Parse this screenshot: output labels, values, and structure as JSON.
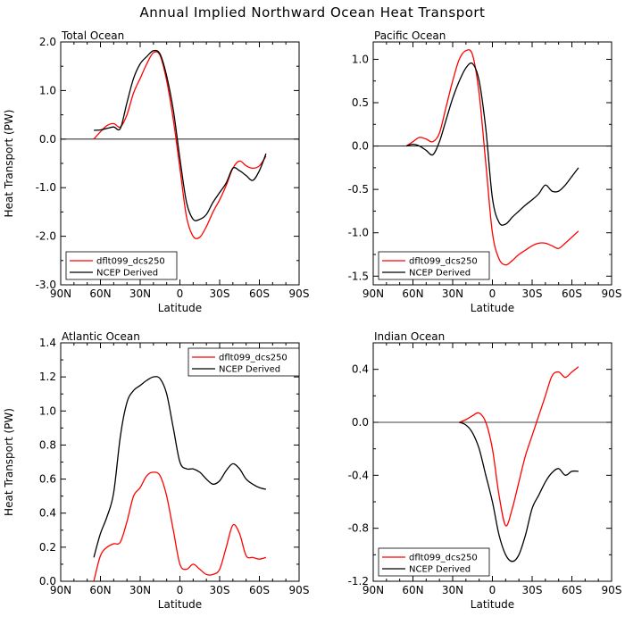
{
  "figure_title": "Annual Implied Northward Ocean Heat Transport",
  "colors": {
    "model": "#ff0000",
    "obs": "#000000",
    "zero_line": "#000000"
  },
  "chart_data": [
    {
      "type": "line",
      "title": "Total Ocean",
      "xlabel": "Latitude",
      "ylabel": "Heat Transport (PW)",
      "xlim": [
        90,
        -90
      ],
      "ylim": [
        -3.0,
        2.0
      ],
      "xticks": [
        90,
        60,
        30,
        0,
        -30,
        -60,
        -90
      ],
      "xtick_labels": [
        "90N",
        "60N",
        "30N",
        "0",
        "30S",
        "60S",
        "90S"
      ],
      "yticks": [
        -3.0,
        -2.0,
        -1.0,
        0.0,
        1.0,
        2.0
      ],
      "ytick_labels": [
        "-3.0",
        "-2.0",
        "-1.0",
        "0.0",
        "1.0",
        "2.0"
      ],
      "zero_line": true,
      "legend_position": "bottom-left",
      "series": [
        {
          "name": "dflt099_dcs250",
          "color": "#ff0000",
          "x": [
            65,
            60,
            55,
            50,
            45,
            40,
            35,
            30,
            25,
            20,
            15,
            10,
            5,
            0,
            -5,
            -10,
            -15,
            -20,
            -25,
            -30,
            -35,
            -40,
            -45,
            -50,
            -55,
            -60,
            -65
          ],
          "y": [
            0.0,
            0.15,
            0.28,
            0.32,
            0.25,
            0.5,
            0.95,
            1.25,
            1.55,
            1.78,
            1.72,
            1.2,
            0.4,
            -0.6,
            -1.6,
            -2.0,
            -2.02,
            -1.8,
            -1.5,
            -1.25,
            -0.95,
            -0.6,
            -0.45,
            -0.55,
            -0.6,
            -0.55,
            -0.35
          ]
        },
        {
          "name": "NCEP Derived",
          "color": "#000000",
          "x": [
            65,
            60,
            55,
            50,
            45,
            40,
            35,
            30,
            25,
            20,
            15,
            10,
            5,
            0,
            -5,
            -10,
            -15,
            -20,
            -25,
            -30,
            -35,
            -40,
            -45,
            -50,
            -55,
            -60,
            -65
          ],
          "y": [
            0.18,
            0.19,
            0.22,
            0.25,
            0.22,
            0.75,
            1.25,
            1.55,
            1.7,
            1.82,
            1.75,
            1.3,
            0.6,
            -0.4,
            -1.3,
            -1.65,
            -1.65,
            -1.55,
            -1.3,
            -1.1,
            -0.9,
            -0.6,
            -0.65,
            -0.75,
            -0.85,
            -0.65,
            -0.3
          ]
        }
      ]
    },
    {
      "type": "line",
      "title": "Pacific Ocean",
      "xlabel": "Latitude",
      "ylabel": "",
      "xlim": [
        90,
        -90
      ],
      "ylim": [
        -1.6,
        1.2
      ],
      "xticks": [
        90,
        60,
        30,
        0,
        -30,
        -60,
        -90
      ],
      "xtick_labels": [
        "90N",
        "60N",
        "30N",
        "0",
        "30S",
        "60S",
        "90S"
      ],
      "yticks": [
        -1.5,
        -1.0,
        -0.5,
        0.0,
        0.5,
        1.0
      ],
      "ytick_labels": [
        "-1.5",
        "-1.0",
        "-0.5",
        "0.0",
        "0.5",
        "1.0"
      ],
      "zero_line": true,
      "legend_position": "bottom-left",
      "series": [
        {
          "name": "dflt099_dcs250",
          "color": "#ff0000",
          "x": [
            65,
            60,
            55,
            50,
            45,
            40,
            35,
            30,
            25,
            20,
            15,
            10,
            5,
            0,
            -5,
            -10,
            -15,
            -20,
            -25,
            -30,
            -35,
            -40,
            -45,
            -50,
            -55,
            -60,
            -65
          ],
          "y": [
            0.0,
            0.05,
            0.1,
            0.08,
            0.05,
            0.15,
            0.45,
            0.75,
            1.0,
            1.1,
            1.05,
            0.6,
            -0.2,
            -1.0,
            -1.3,
            -1.37,
            -1.32,
            -1.25,
            -1.2,
            -1.15,
            -1.12,
            -1.12,
            -1.15,
            -1.18,
            -1.12,
            -1.05,
            -0.98
          ]
        },
        {
          "name": "NCEP Derived",
          "color": "#000000",
          "x": [
            65,
            60,
            55,
            50,
            45,
            40,
            35,
            30,
            25,
            20,
            15,
            10,
            5,
            0,
            -5,
            -10,
            -15,
            -20,
            -25,
            -30,
            -35,
            -40,
            -45,
            -50,
            -55,
            -60,
            -65
          ],
          "y": [
            0.0,
            0.02,
            0.0,
            -0.05,
            -0.1,
            0.05,
            0.3,
            0.55,
            0.75,
            0.9,
            0.95,
            0.75,
            0.2,
            -0.6,
            -0.88,
            -0.9,
            -0.82,
            -0.75,
            -0.68,
            -0.62,
            -0.55,
            -0.45,
            -0.52,
            -0.52,
            -0.45,
            -0.35,
            -0.25
          ]
        }
      ]
    },
    {
      "type": "line",
      "title": "Atlantic Ocean",
      "xlabel": "Latitude",
      "ylabel": "Heat Transport (PW)",
      "xlim": [
        90,
        -90
      ],
      "ylim": [
        0.0,
        1.4
      ],
      "xticks": [
        90,
        60,
        30,
        0,
        -30,
        -60,
        -90
      ],
      "xtick_labels": [
        "90N",
        "60N",
        "30N",
        "0",
        "30S",
        "60S",
        "90S"
      ],
      "yticks": [
        0.0,
        0.2,
        0.4,
        0.6,
        0.8,
        1.0,
        1.2,
        1.4
      ],
      "ytick_labels": [
        "0.0",
        "0.2",
        "0.4",
        "0.6",
        "0.8",
        "1.0",
        "1.2",
        "1.4"
      ],
      "zero_line": false,
      "legend_position": "top-right",
      "series": [
        {
          "name": "dflt099_dcs250",
          "color": "#ff0000",
          "x": [
            65,
            60,
            55,
            50,
            45,
            40,
            35,
            30,
            25,
            20,
            15,
            10,
            5,
            0,
            -5,
            -10,
            -15,
            -20,
            -25,
            -30,
            -35,
            -40,
            -45,
            -50,
            -55,
            -60,
            -65
          ],
          "y": [
            0.0,
            0.15,
            0.2,
            0.22,
            0.23,
            0.35,
            0.5,
            0.55,
            0.62,
            0.64,
            0.62,
            0.5,
            0.3,
            0.1,
            0.07,
            0.1,
            0.07,
            0.04,
            0.04,
            0.07,
            0.2,
            0.33,
            0.28,
            0.15,
            0.14,
            0.13,
            0.14
          ]
        },
        {
          "name": "NCEP Derived",
          "color": "#000000",
          "x": [
            65,
            60,
            55,
            50,
            45,
            40,
            35,
            30,
            25,
            20,
            15,
            10,
            5,
            0,
            -5,
            -10,
            -15,
            -20,
            -25,
            -30,
            -35,
            -40,
            -45,
            -50,
            -55,
            -60,
            -65
          ],
          "y": [
            0.14,
            0.28,
            0.38,
            0.52,
            0.85,
            1.05,
            1.12,
            1.15,
            1.18,
            1.2,
            1.19,
            1.1,
            0.9,
            0.7,
            0.66,
            0.66,
            0.64,
            0.6,
            0.57,
            0.59,
            0.65,
            0.69,
            0.66,
            0.6,
            0.57,
            0.55,
            0.54
          ]
        }
      ]
    },
    {
      "type": "line",
      "title": "Indian Ocean",
      "xlabel": "Latitude",
      "ylabel": "",
      "xlim": [
        90,
        -90
      ],
      "ylim": [
        -1.2,
        0.6
      ],
      "xticks": [
        90,
        60,
        30,
        0,
        -30,
        -60,
        -90
      ],
      "xtick_labels": [
        "90N",
        "60N",
        "30N",
        "0",
        "30S",
        "60S",
        "90S"
      ],
      "yticks": [
        -1.2,
        -0.8,
        -0.4,
        0.0,
        0.4
      ],
      "ytick_labels": [
        "-1.2",
        "-0.8",
        "-0.4",
        "0.0",
        "0.4"
      ],
      "zero_line": true,
      "legend_position": "bottom-left",
      "series": [
        {
          "name": "dflt099_dcs250",
          "color": "#ff0000",
          "x": [
            25,
            20,
            15,
            10,
            5,
            0,
            -5,
            -10,
            -15,
            -20,
            -25,
            -30,
            -35,
            -40,
            -45,
            -50,
            -55,
            -60,
            -65
          ],
          "y": [
            0.0,
            0.02,
            0.05,
            0.07,
            0.0,
            -0.2,
            -0.55,
            -0.78,
            -0.65,
            -0.45,
            -0.25,
            -0.1,
            0.05,
            0.2,
            0.35,
            0.38,
            0.34,
            0.38,
            0.42
          ]
        },
        {
          "name": "NCEP Derived",
          "color": "#000000",
          "x": [
            25,
            20,
            15,
            10,
            5,
            0,
            -5,
            -10,
            -15,
            -20,
            -25,
            -30,
            -35,
            -40,
            -45,
            -50,
            -55,
            -60,
            -65
          ],
          "y": [
            0.0,
            -0.02,
            -0.08,
            -0.2,
            -0.4,
            -0.6,
            -0.85,
            -1.0,
            -1.05,
            -1.0,
            -0.85,
            -0.65,
            -0.55,
            -0.45,
            -0.38,
            -0.35,
            -0.4,
            -0.37,
            -0.37
          ]
        }
      ]
    }
  ]
}
